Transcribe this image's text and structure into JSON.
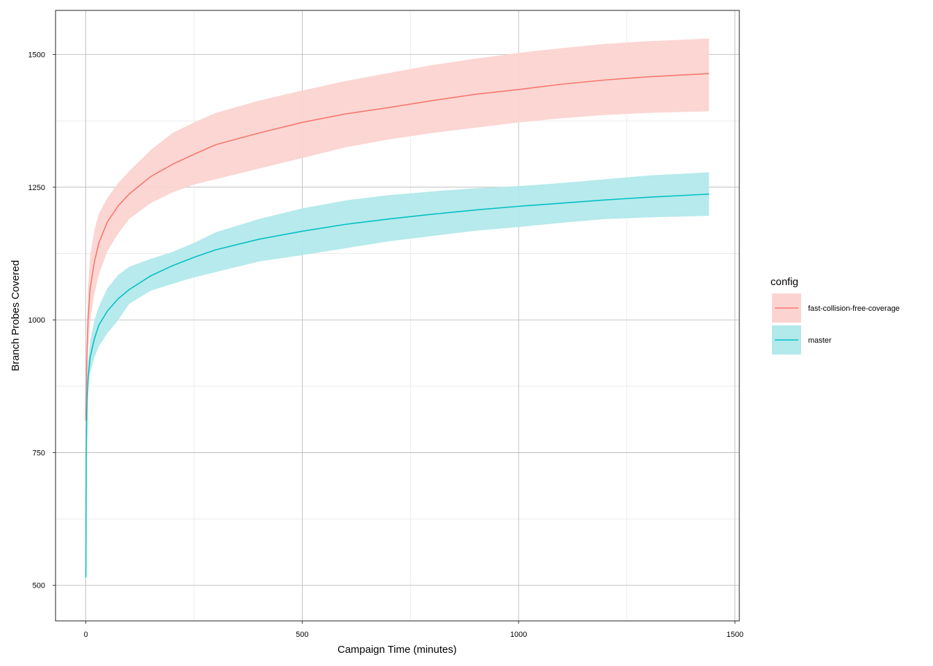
{
  "chart_data": {
    "type": "line",
    "title": "",
    "xlabel": "Campaign Time (minutes)",
    "ylabel": "Branch Probes Covered",
    "xlim": [
      -70,
      1510
    ],
    "ylim": [
      433,
      1583
    ],
    "xticks": [
      0,
      500,
      1000,
      1500
    ],
    "yticks": [
      500,
      750,
      1000,
      1250,
      1500
    ],
    "x_minor_grid": [
      250,
      750,
      1250
    ],
    "y_minor_grid": [
      625,
      875,
      1125,
      1375
    ],
    "grid": true,
    "legend": {
      "title": "config",
      "position": "right"
    },
    "series": [
      {
        "name": "fast-collision-free-coverage",
        "color": "#F8766D",
        "fill": "#FBD4D1",
        "x": [
          0,
          1,
          3,
          5,
          10,
          20,
          30,
          50,
          75,
          100,
          150,
          200,
          250,
          300,
          400,
          500,
          600,
          700,
          800,
          900,
          1000,
          1100,
          1200,
          1300,
          1440
        ],
        "mean": [
          810,
          870,
          950,
          1000,
          1060,
          1110,
          1145,
          1185,
          1215,
          1237,
          1270,
          1293,
          1312,
          1330,
          1352,
          1372,
          1388,
          1400,
          1413,
          1425,
          1434,
          1444,
          1452,
          1458,
          1464
        ],
        "lower": [
          800,
          840,
          890,
          940,
          1000,
          1050,
          1085,
          1130,
          1163,
          1190,
          1220,
          1240,
          1255,
          1265,
          1285,
          1305,
          1325,
          1340,
          1352,
          1362,
          1372,
          1380,
          1386,
          1390,
          1393
        ],
        "upper": [
          820,
          900,
          1000,
          1060,
          1120,
          1170,
          1200,
          1230,
          1258,
          1280,
          1320,
          1352,
          1372,
          1390,
          1413,
          1432,
          1450,
          1465,
          1480,
          1492,
          1503,
          1512,
          1520,
          1525,
          1530
        ]
      },
      {
        "name": "master",
        "color": "#00BFC4",
        "fill": "#B2E9EB",
        "x": [
          0,
          1,
          3,
          5,
          10,
          20,
          30,
          50,
          75,
          100,
          150,
          200,
          250,
          300,
          400,
          500,
          600,
          700,
          800,
          900,
          1000,
          1100,
          1200,
          1300,
          1440
        ],
        "mean": [
          515,
          750,
          850,
          890,
          930,
          965,
          990,
          1017,
          1040,
          1057,
          1083,
          1102,
          1118,
          1132,
          1152,
          1167,
          1180,
          1190,
          1199,
          1207,
          1214,
          1220,
          1226,
          1231,
          1237
        ],
        "lower": [
          515,
          730,
          820,
          860,
          900,
          930,
          950,
          975,
          1000,
          1030,
          1055,
          1068,
          1080,
          1090,
          1110,
          1122,
          1135,
          1148,
          1158,
          1168,
          1175,
          1183,
          1190,
          1193,
          1196
        ],
        "upper": [
          520,
          770,
          880,
          920,
          960,
          1000,
          1025,
          1060,
          1085,
          1100,
          1115,
          1128,
          1145,
          1165,
          1190,
          1210,
          1225,
          1235,
          1242,
          1248,
          1252,
          1258,
          1265,
          1272,
          1278
        ]
      }
    ]
  }
}
